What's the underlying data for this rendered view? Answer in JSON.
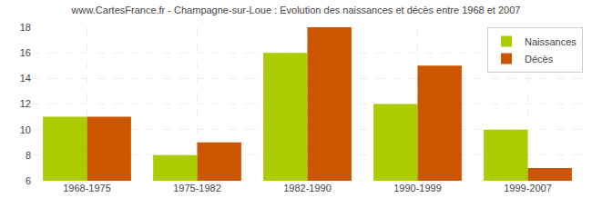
{
  "chart_data": {
    "type": "bar",
    "title": "www.CartesFrance.fr - Champagne-sur-Loue : Evolution des naissances et décès entre 1968 et 2007",
    "categories": [
      "1968-1975",
      "1975-1982",
      "1982-1990",
      "1990-1999",
      "1999-2007"
    ],
    "series": [
      {
        "name": "Naissances",
        "color": "#aacc00",
        "values": [
          11,
          8,
          16,
          12,
          10
        ]
      },
      {
        "name": "Décès",
        "color": "#cc5500",
        "values": [
          11,
          9,
          18,
          15,
          7
        ]
      }
    ],
    "ylim": [
      6,
      18
    ],
    "yticks": [
      6,
      8,
      10,
      12,
      14,
      16,
      18
    ],
    "grid": true,
    "legend": "upper right"
  }
}
